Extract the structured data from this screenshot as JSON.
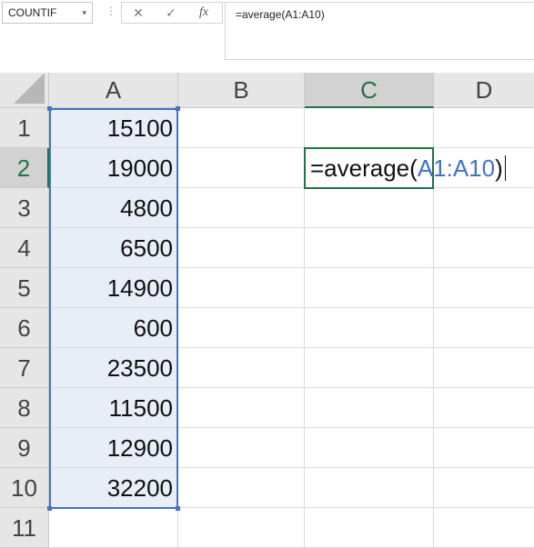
{
  "formula_bar": {
    "name_box": "COUNTIF",
    "name_box_arrow": "▾",
    "cancel_icon": "✕",
    "enter_icon": "✓",
    "fx_label": "fx",
    "formula": "=average(A1:A10)"
  },
  "columns": [
    "A",
    "B",
    "C",
    "D"
  ],
  "selected_column": "C",
  "rows": [
    "1",
    "2",
    "3",
    "4",
    "5",
    "6",
    "7",
    "8",
    "9",
    "10",
    "11"
  ],
  "selected_row": "2",
  "column_a_values": [
    "15100",
    "19000",
    "4800",
    "6500",
    "14900",
    "600",
    "23500",
    "11500",
    "12900",
    "32200"
  ],
  "active_cell": {
    "ref": "C2",
    "prefix": "=average(",
    "reference": "A1:A10",
    "suffix": ")"
  },
  "colors": {
    "accent": "#217346",
    "range_ref": "#4472c4",
    "range_fill": "#e8eef8"
  }
}
